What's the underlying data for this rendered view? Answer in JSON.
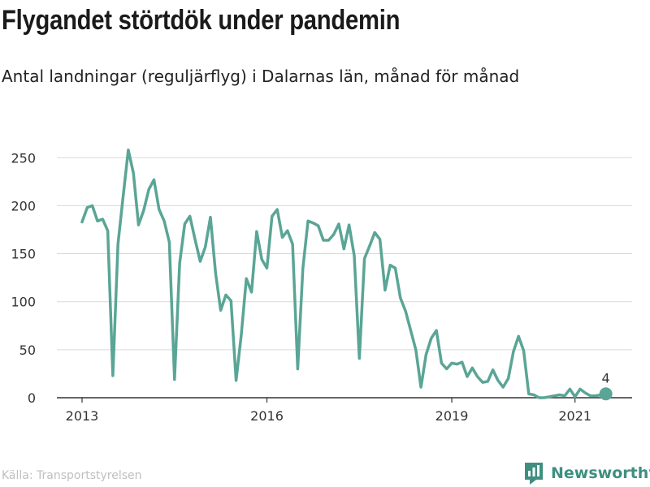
{
  "title": "Flygandet störtdök under pandemin",
  "subtitle": "Antal landningar (reguljärflyg) i Dalarnas län, månad för månad",
  "source": "Källa: Transportstyrelsen",
  "brand": "Newsworthy",
  "colors": {
    "line": "#5aa596",
    "grid": "#d9d9d9",
    "axis": "#333333",
    "brand": "#3f8f80"
  },
  "chart_data": {
    "type": "line",
    "title": "Flygandet störtdök under pandemin",
    "subtitle": "Antal landningar (reguljärflyg) i Dalarnas län, månad för månad",
    "xlabel": "",
    "ylabel": "",
    "x_start": "2013-01",
    "x_tick_labels": [
      "2013",
      "2016",
      "2019",
      "2021"
    ],
    "ylim": [
      0,
      260
    ],
    "y_ticks": [
      0,
      50,
      100,
      150,
      200,
      250
    ],
    "grid": true,
    "last_value_label": "4",
    "series": [
      {
        "values": [
          183,
          198,
          200,
          184,
          186,
          174,
          23,
          160,
          210,
          258,
          234,
          180,
          195,
          217,
          227,
          196,
          184,
          162,
          19,
          140,
          181,
          189,
          165,
          142,
          157,
          188,
          130,
          91,
          107,
          101,
          18,
          65,
          124,
          110,
          173,
          144,
          135,
          189,
          196,
          167,
          174,
          160,
          30,
          135,
          184,
          182,
          179,
          164,
          164,
          170,
          181,
          155,
          180,
          148,
          41,
          145,
          158,
          172,
          165,
          112,
          138,
          135,
          104,
          90,
          70,
          50,
          11,
          45,
          62,
          70,
          36,
          30,
          36,
          35,
          37,
          22,
          31,
          22,
          16,
          17,
          29,
          18,
          11,
          20,
          48,
          64,
          49,
          4,
          3,
          0,
          0,
          1,
          2,
          3,
          2,
          9,
          1,
          9,
          5,
          2,
          2,
          3,
          4
        ]
      }
    ]
  }
}
